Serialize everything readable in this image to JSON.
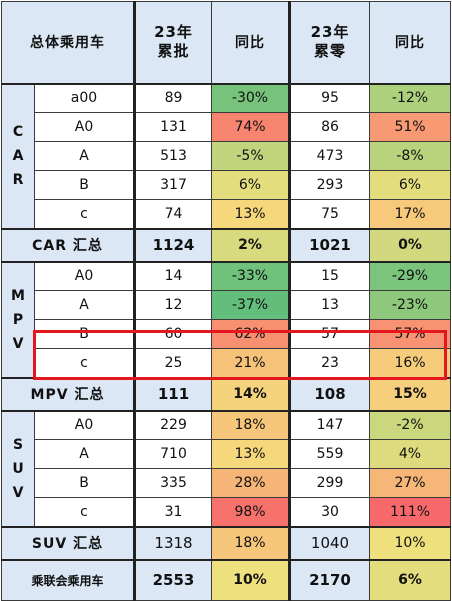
{
  "header": {
    "segment": "总体乘用车",
    "col1": [
      "23年",
      "累批"
    ],
    "col2": "同比",
    "col3": [
      "23年",
      "累零"
    ],
    "col4": "同比"
  },
  "colors": {
    "header_bg": "#dbe7f4",
    "highlight": "#e4161e",
    "scale_green": "#63be7b",
    "scale_yellow": "#f5e17e",
    "scale_red": "#f8696b"
  },
  "groups": [
    {
      "key": "car",
      "label": [
        "C",
        "A",
        "R"
      ],
      "rows": [
        {
          "seg": "a00",
          "wholesale": "89",
          "wholesale_yoy": "-30%",
          "retail": "95",
          "retail_yoy": "-12%"
        },
        {
          "seg": "A0",
          "wholesale": "131",
          "wholesale_yoy": "74%",
          "retail": "86",
          "retail_yoy": "51%"
        },
        {
          "seg": "A",
          "wholesale": "513",
          "wholesale_yoy": "-5%",
          "retail": "473",
          "retail_yoy": "-8%"
        },
        {
          "seg": "B",
          "wholesale": "317",
          "wholesale_yoy": "6%",
          "retail": "293",
          "retail_yoy": "6%"
        },
        {
          "seg": "c",
          "wholesale": "74",
          "wholesale_yoy": "13%",
          "retail": "75",
          "retail_yoy": "17%"
        }
      ],
      "summary": {
        "label": "CAR 汇总",
        "wholesale": "1124",
        "wholesale_yoy": "2%",
        "retail": "1021",
        "retail_yoy": "0%"
      }
    },
    {
      "key": "mpv",
      "label": [
        "M",
        "P",
        "V"
      ],
      "rows": [
        {
          "seg": "A0",
          "wholesale": "14",
          "wholesale_yoy": "-33%",
          "retail": "15",
          "retail_yoy": "-29%"
        },
        {
          "seg": "A",
          "wholesale": "12",
          "wholesale_yoy": "-37%",
          "retail": "13",
          "retail_yoy": "-23%"
        },
        {
          "seg": "B",
          "wholesale": "60",
          "wholesale_yoy": "62%",
          "retail": "57",
          "retail_yoy": "57%"
        },
        {
          "seg": "c",
          "wholesale": "25",
          "wholesale_yoy": "21%",
          "retail": "23",
          "retail_yoy": "16%"
        }
      ],
      "summary": {
        "label": "MPV 汇总",
        "wholesale": "111",
        "wholesale_yoy": "14%",
        "retail": "108",
        "retail_yoy": "15%"
      }
    },
    {
      "key": "suv",
      "label": [
        "S",
        "U",
        "V"
      ],
      "rows": [
        {
          "seg": "A0",
          "wholesale": "229",
          "wholesale_yoy": "18%",
          "retail": "147",
          "retail_yoy": "-2%"
        },
        {
          "seg": "A",
          "wholesale": "710",
          "wholesale_yoy": "13%",
          "retail": "559",
          "retail_yoy": "4%"
        },
        {
          "seg": "B",
          "wholesale": "335",
          "wholesale_yoy": "28%",
          "retail": "299",
          "retail_yoy": "27%"
        },
        {
          "seg": "c",
          "wholesale": "31",
          "wholesale_yoy": "98%",
          "retail": "30",
          "retail_yoy": "111%"
        }
      ],
      "summary": {
        "label": "SUV 汇总",
        "wholesale": "1318",
        "wholesale_yoy": "18%",
        "retail": "1040",
        "retail_yoy": "10%"
      }
    }
  ],
  "total": {
    "label": "乘联会乘用车",
    "wholesale": "2553",
    "wholesale_yoy": "10%",
    "retail": "2170",
    "retail_yoy": "6%"
  },
  "chart_data": {
    "type": "table",
    "columns": [
      "总体乘用车",
      "23年累批",
      "同比",
      "23年累零",
      "同比"
    ],
    "rows": [
      [
        "CAR a00",
        89,
        -30,
        95,
        -12
      ],
      [
        "CAR A0",
        131,
        74,
        86,
        51
      ],
      [
        "CAR A",
        513,
        -5,
        473,
        -8
      ],
      [
        "CAR B",
        317,
        6,
        293,
        6
      ],
      [
        "CAR c",
        74,
        13,
        75,
        17
      ],
      [
        "CAR 汇总",
        1124,
        2,
        1021,
        0
      ],
      [
        "MPV A0",
        14,
        -33,
        15,
        -29
      ],
      [
        "MPV A",
        12,
        -37,
        13,
        -23
      ],
      [
        "MPV B",
        60,
        62,
        57,
        57
      ],
      [
        "MPV c",
        25,
        21,
        23,
        16
      ],
      [
        "MPV 汇总",
        111,
        14,
        108,
        15
      ],
      [
        "SUV A0",
        229,
        18,
        147,
        -2
      ],
      [
        "SUV A",
        710,
        13,
        559,
        4
      ],
      [
        "SUV B",
        335,
        28,
        299,
        27
      ],
      [
        "SUV c",
        31,
        98,
        30,
        111
      ],
      [
        "SUV 汇总",
        1318,
        18,
        1040,
        10
      ],
      [
        "乘联会乘用车",
        2553,
        10,
        2170,
        6
      ]
    ],
    "highlighted_rows": [
      "MPV B",
      "MPV c"
    ]
  }
}
